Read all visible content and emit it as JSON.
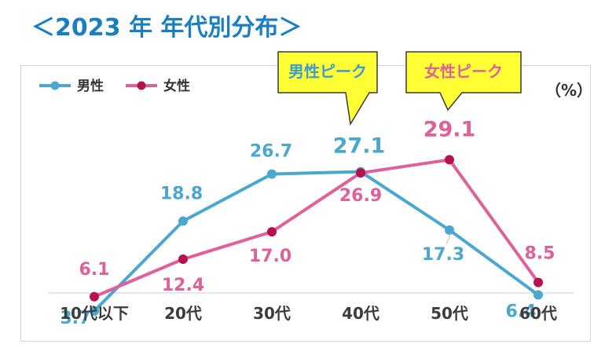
{
  "title": "＜2023 年  年代別分布＞",
  "unit_label": "（%）",
  "legend": [
    {
      "label": "男性",
      "color": "#4aa8d0"
    },
    {
      "label": "女性",
      "color": "#e0609a"
    }
  ],
  "callouts": [
    {
      "label": "男性ピーク",
      "text_color": "#3a9bd0",
      "fill": "#ffff33",
      "points_to_category": "40代"
    },
    {
      "label": "女性ピーク",
      "text_color": "#e0609a",
      "fill": "#ffff33",
      "points_to_category": "50代"
    }
  ],
  "chart_data": {
    "type": "line",
    "categories": [
      "10代以下",
      "20代",
      "30代",
      "40代",
      "50代",
      "60代"
    ],
    "series": [
      {
        "name": "男性",
        "color": "#4aa8d0",
        "marker_color": "#4aa8d0",
        "values": [
          3.7,
          18.8,
          26.7,
          27.1,
          17.3,
          6.4
        ]
      },
      {
        "name": "女性",
        "color": "#e0609a",
        "marker_color": "#b5134e",
        "values": [
          6.1,
          12.4,
          17.0,
          26.9,
          29.1,
          8.5
        ]
      }
    ],
    "ylim": [
      0,
      35
    ],
    "grid": false,
    "legend_position": "top-left",
    "y_unit": "%"
  }
}
